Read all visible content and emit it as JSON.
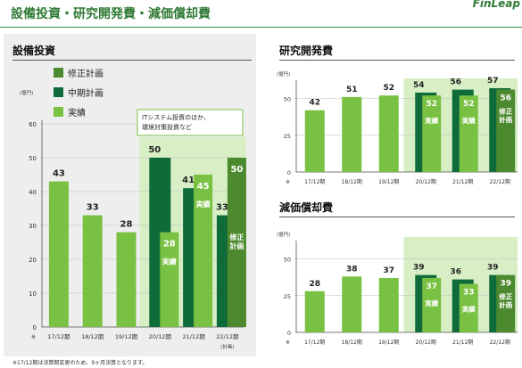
{
  "header": {
    "title": "設備投資・研究開発費・減価償却費",
    "logo": "FinLeap"
  },
  "footnote": "※17/12期は決算期変更のため、9ヶ月決算となります。",
  "colors": {
    "actual": "#79c142",
    "midterm": "#0f6b3a",
    "revised": "#4d8a2f",
    "highlight": "#d8efc6",
    "title": "#2f7a34"
  },
  "labels": {
    "actual_inbar": "実績",
    "revised_inbar": "修正\n計画",
    "plan_sub": "(計画)",
    "unit": "(億円)",
    "note_mark": "※"
  },
  "chart_data": [
    {
      "type": "bar",
      "title": "設備投資",
      "ylabel": "(億円)",
      "ylim": [
        0,
        60
      ],
      "yticks": [
        0,
        10,
        20,
        30,
        40,
        50,
        60
      ],
      "categories": [
        "17/12期",
        "18/12期",
        "19/12期",
        "20/12期",
        "21/12期",
        "22/12期"
      ],
      "legend": [
        "修正計画",
        "中期計画",
        "実績"
      ],
      "annotation": "ITシステム投資のほか、\n環境対策投資など",
      "series": [
        {
          "name": "実績",
          "values": [
            43,
            33,
            28,
            28,
            45,
            null
          ]
        },
        {
          "name": "中期計画",
          "values": [
            null,
            null,
            null,
            50,
            41,
            33
          ]
        },
        {
          "name": "修正計画",
          "values": [
            null,
            null,
            null,
            null,
            null,
            50
          ]
        }
      ]
    },
    {
      "type": "bar",
      "title": "研究開発費",
      "ylabel": "(億円)",
      "ylim": [
        0,
        60
      ],
      "yticks": [
        0,
        25,
        50
      ],
      "categories": [
        "17/12期",
        "18/12期",
        "19/12期",
        "20/12期",
        "21/12期",
        "22/12期"
      ],
      "series": [
        {
          "name": "実績",
          "values": [
            42,
            51,
            52,
            52,
            52,
            null
          ]
        },
        {
          "name": "中期計画",
          "values": [
            null,
            null,
            null,
            54,
            56,
            57
          ]
        },
        {
          "name": "修正計画",
          "values": [
            null,
            null,
            null,
            null,
            null,
            56
          ]
        }
      ]
    },
    {
      "type": "bar",
      "title": "減価償却費",
      "ylabel": "(億円)",
      "ylim": [
        0,
        60
      ],
      "yticks": [
        0,
        25,
        50
      ],
      "categories": [
        "17/12期",
        "18/12期",
        "19/12期",
        "20/12期",
        "21/12期",
        "22/12期"
      ],
      "series": [
        {
          "name": "実績",
          "values": [
            28,
            38,
            37,
            37,
            33,
            null
          ]
        },
        {
          "name": "中期計画",
          "values": [
            null,
            null,
            null,
            39,
            36,
            39
          ]
        },
        {
          "name": "修正計画",
          "values": [
            null,
            null,
            null,
            null,
            null,
            39
          ]
        }
      ]
    }
  ]
}
